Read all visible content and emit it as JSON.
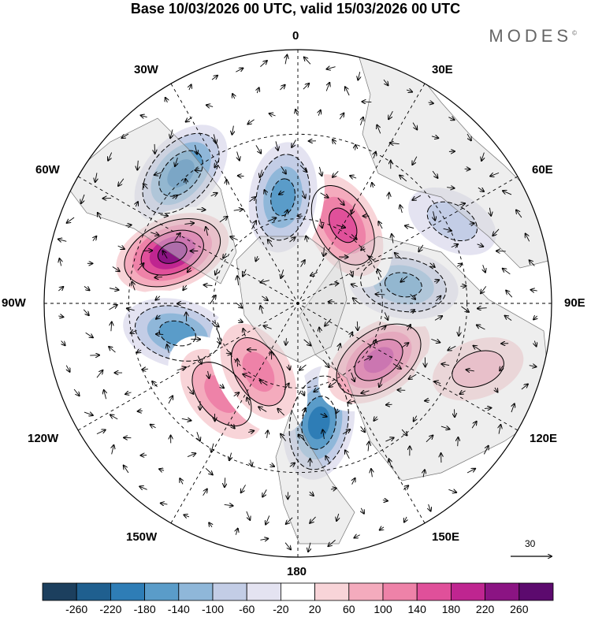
{
  "header": {
    "title": "Base 10/03/2026 00 UTC, valid 15/03/2026 00 UTC",
    "brand": "MODES"
  },
  "longitude_labels": [
    "0",
    "30E",
    "60E",
    "90E",
    "120E",
    "150E",
    "180",
    "150W",
    "120W",
    "90W",
    "60W",
    "30W"
  ],
  "colorbar": {
    "labels": [
      "-260",
      "-220",
      "-180",
      "-140",
      "-100",
      "-60",
      "-20",
      "20",
      "60",
      "100",
      "140",
      "180",
      "220",
      "260"
    ],
    "colors": [
      "#1c3f5e",
      "#1f5f8f",
      "#2e7db6",
      "#5a9cc9",
      "#8fb7d9",
      "#c3cde6",
      "#e4e3f1",
      "#ffffff",
      "#f8d4d8",
      "#f4abbd",
      "#ee82a8",
      "#e0509a",
      "#bf2590",
      "#8b1483",
      "#5c0a6e"
    ]
  },
  "reference_vector": {
    "label": "30"
  },
  "anomaly_centers": [
    {
      "sign": "negative",
      "value": -220,
      "lon": 10,
      "lat": 47
    },
    {
      "sign": "positive",
      "value": 220,
      "lon": 55,
      "lat": 55
    },
    {
      "sign": "negative",
      "value": -180,
      "lon": 100,
      "lat": 52
    },
    {
      "sign": "positive",
      "value": 180,
      "lon": 150,
      "lat": 58
    },
    {
      "sign": "negative",
      "value": -180,
      "lon": -172,
      "lat": 52
    },
    {
      "sign": "negative",
      "value": -220,
      "lon": -138,
      "lat": 28
    },
    {
      "sign": "positive",
      "value": 260,
      "lon": -112,
      "lat": 42
    },
    {
      "sign": "negative",
      "value": -180,
      "lon": -76,
      "lat": 46
    },
    {
      "sign": "positive",
      "value": 140,
      "lon": -40,
      "lat": 48
    },
    {
      "sign": "positive",
      "value": 140,
      "lon": -30,
      "lat": 62
    },
    {
      "sign": "positive",
      "value": 100,
      "lon": 70,
      "lat": 22
    },
    {
      "sign": "negative",
      "value": -100,
      "lon": 118,
      "lat": 28
    }
  ]
}
